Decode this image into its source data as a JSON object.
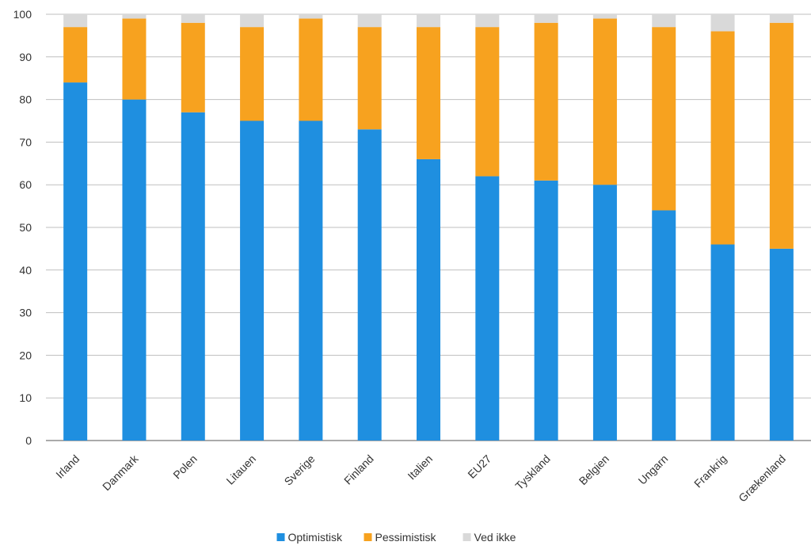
{
  "chart_data": {
    "type": "bar",
    "stacked": true,
    "categories": [
      "Irland",
      "Danmark",
      "Polen",
      "Litauen",
      "Sverige",
      "Finland",
      "Italien",
      "EU27",
      "Tyskland",
      "Belgien",
      "Ungarn",
      "Frankrig",
      "Grækenland"
    ],
    "series": [
      {
        "name": "Optimistisk",
        "color": "#1f8fe0",
        "values": [
          84,
          80,
          77,
          75,
          75,
          73,
          66,
          62,
          61,
          60,
          54,
          46,
          45
        ]
      },
      {
        "name": "Pessimistisk",
        "color": "#f7a21f",
        "values": [
          13,
          19,
          21,
          22,
          24,
          24,
          31,
          35,
          37,
          39,
          43,
          50,
          53
        ]
      },
      {
        "name": "Ved ikke",
        "color": "#d9d9d9",
        "values": [
          3,
          1,
          2,
          3,
          1,
          3,
          3,
          3,
          2,
          1,
          3,
          4,
          2
        ]
      }
    ],
    "ylim": [
      0,
      100
    ],
    "yticks": [
      "0",
      "10",
      "20",
      "30",
      "40",
      "50",
      "60",
      "70",
      "80",
      "90",
      "100"
    ],
    "grid": true,
    "legend": "bottom"
  }
}
